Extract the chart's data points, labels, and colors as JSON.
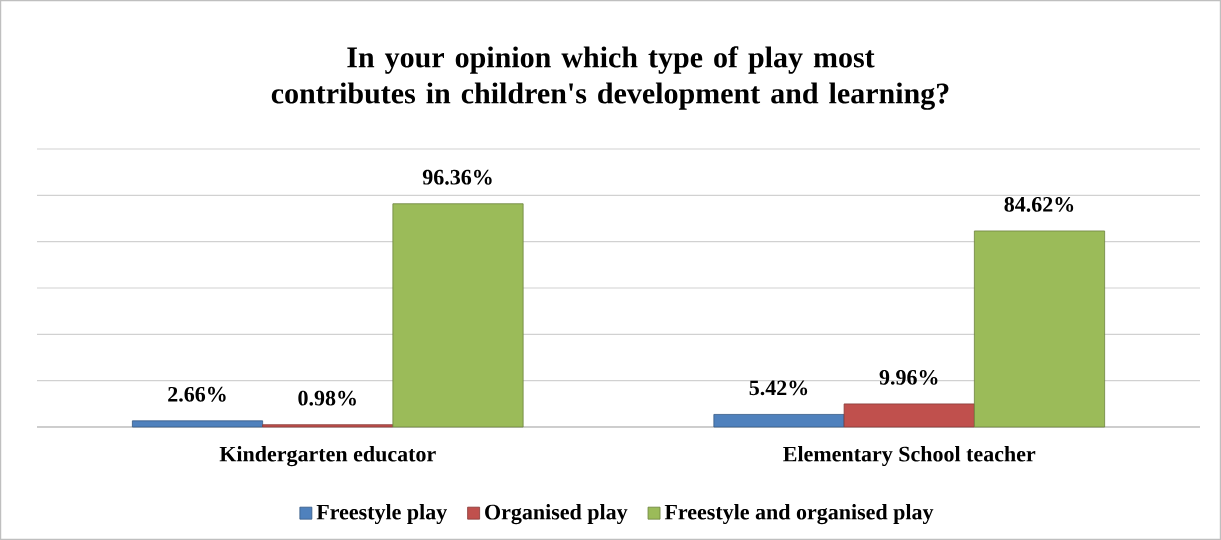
{
  "chart_data": {
    "type": "bar",
    "title": "In your opinion which type of play most contributes in children's development and learning?",
    "categories": [
      "Kindergarten educator",
      "Elementary School teacher"
    ],
    "series": [
      {
        "name": "Freestyle play",
        "color": "#4f81bd",
        "values": [
          2.66,
          5.42
        ],
        "value_labels": [
          "2.66%",
          "5.42%"
        ]
      },
      {
        "name": "Organised play",
        "color": "#c0504d",
        "values": [
          0.98,
          9.96
        ],
        "value_labels": [
          "0.98%",
          "9.96%"
        ]
      },
      {
        "name": "Freestyle and organised play",
        "color": "#9bbb59",
        "values": [
          96.36,
          84.62
        ],
        "value_labels": [
          "96.36%",
          "84.62%"
        ]
      }
    ],
    "ylim": [
      0,
      120
    ],
    "yticks": [
      {
        "value": 0,
        "label": null
      },
      {
        "value": 20,
        "label": null
      },
      {
        "value": 40,
        "label": null
      },
      {
        "value": 60,
        "label": null
      },
      {
        "value": 80,
        "label": null
      },
      {
        "value": 100,
        "label": null
      },
      {
        "value": 120,
        "label": null
      }
    ],
    "grid": "y",
    "tick_labels": "x",
    "legend": "bottom"
  }
}
